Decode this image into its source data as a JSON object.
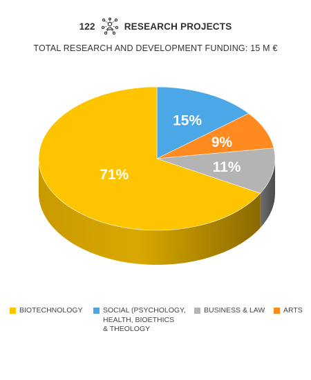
{
  "header": {
    "count": "122",
    "title": "RESEARCH PROJECTS",
    "icon": "network-people-icon"
  },
  "subtitle": "TOTAL RESEARCH AND DEVELOPMENT FUNDING: 15 M €",
  "chart_data": {
    "type": "pie",
    "style": "3d",
    "legend_position": "bottom",
    "slices": [
      {
        "label": "BIOTECHNOLOGY",
        "value": 71,
        "text": "71%",
        "color": "#ffc400"
      },
      {
        "label": "SOCIAL (PSYCHOLOGY,\nHEALTH, BIOETHICS\n& THEOLOGY",
        "value": 15,
        "text": "15%",
        "color": "#4ba7e6"
      },
      {
        "label": "BUSINESS & LAW",
        "value": 11,
        "text": "11%",
        "color": "#b4b4b4"
      },
      {
        "label": "ARTS",
        "value": 9,
        "text": "9%",
        "color": "#ff8a1f"
      }
    ]
  }
}
